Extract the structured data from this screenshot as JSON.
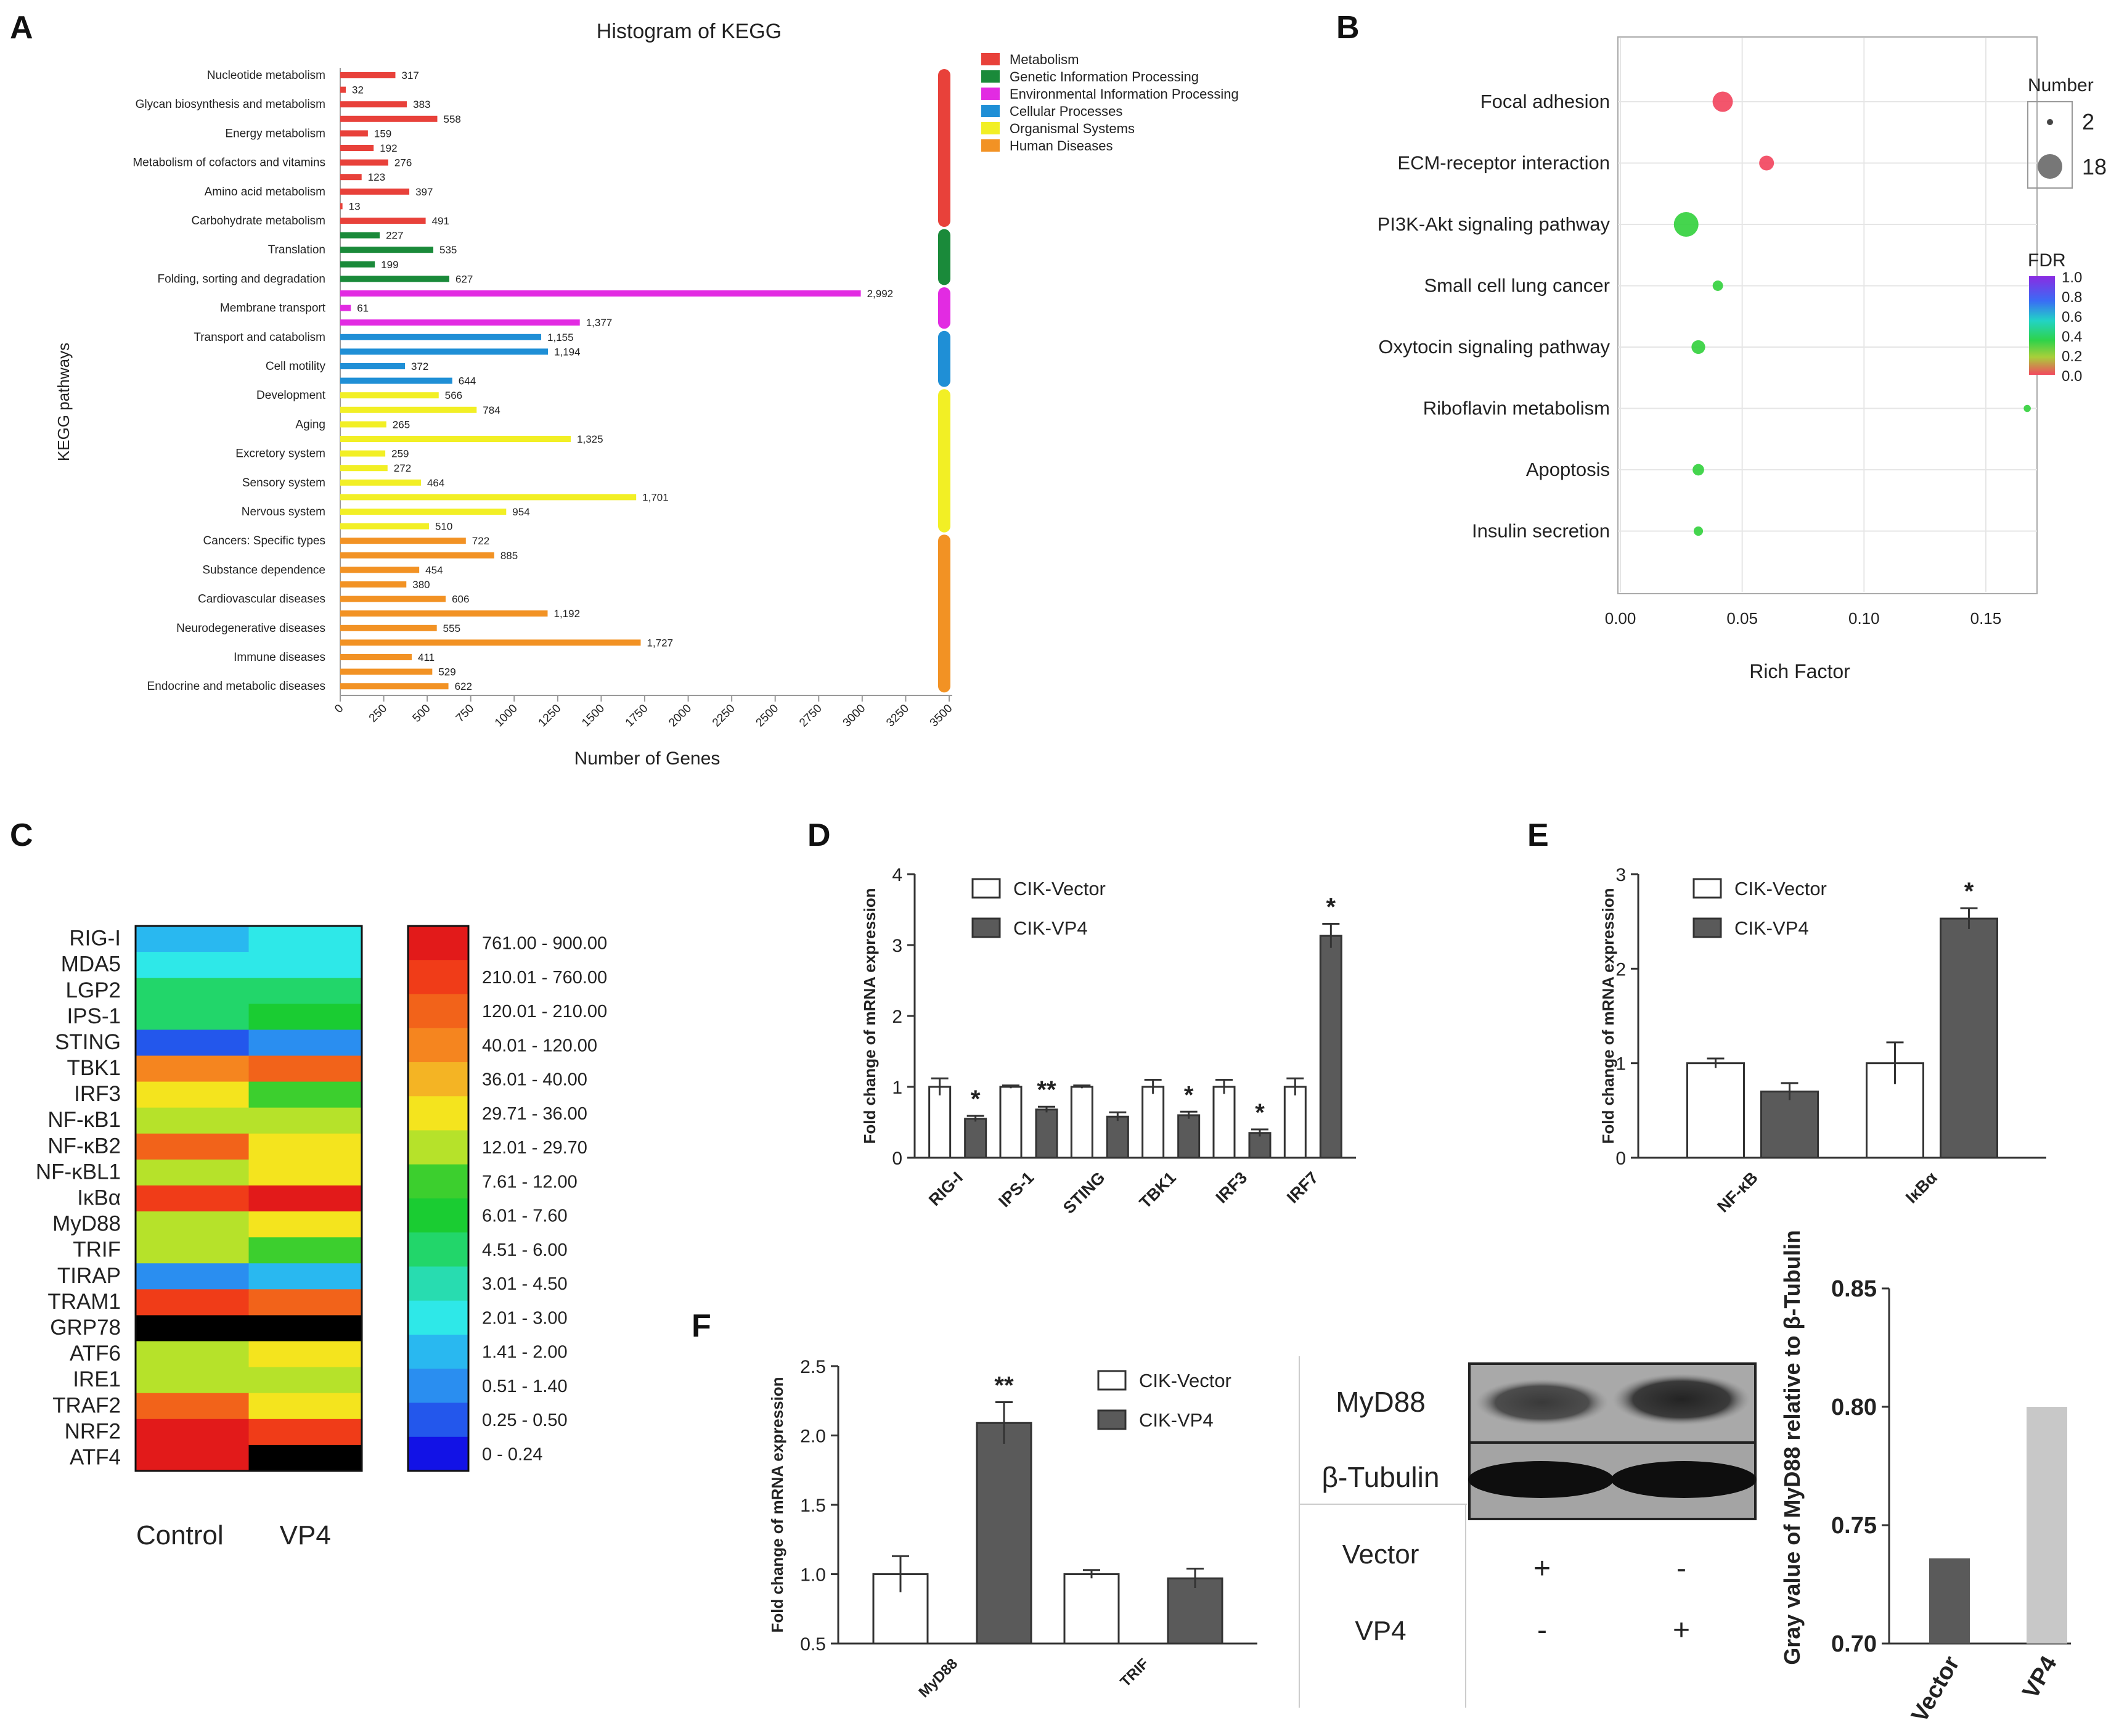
{
  "panels": {
    "A": "A",
    "B": "B",
    "C": "C",
    "D": "D",
    "E": "E",
    "F": "F"
  },
  "colors": {
    "Metabolism": "#e8413a",
    "Genetic Information Processing": "#1a8a3a",
    "Environmental Information Processing": "#e22be2",
    "Cellular Processes": "#1f8fd6",
    "Organismal Systems": "#f2ef25",
    "Human Diseases": "#f29224",
    "dark_bar": "#5a5a5a",
    "light_bar": "#ffffff",
    "grey_bar": "#c8c8c8"
  },
  "chart_data": [
    {
      "id": "kegg",
      "type": "bar",
      "orientation": "horizontal",
      "title": "Histogram of KEGG",
      "xlabel": "Number of Genes",
      "ylabel": "KEGG pathways",
      "xlim": [
        0,
        3500
      ],
      "xticks": [
        "0",
        "250",
        "500",
        "750",
        "1000",
        "1250",
        "1500",
        "1750",
        "2000",
        "2250",
        "2500",
        "2750",
        "3000",
        "3250",
        "3500"
      ],
      "legend": [
        "Metabolism",
        "Genetic Information Processing",
        "Environmental Information Processing",
        "Cellular Processes",
        "Organismal Systems",
        "Human Diseases"
      ],
      "bars": [
        {
          "value": 317,
          "label": "317",
          "cat": "Metabolism",
          "name": "Nucleotide metabolism"
        },
        {
          "value": 32,
          "label": "32",
          "cat": "Metabolism",
          "name": ""
        },
        {
          "value": 383,
          "label": "383",
          "cat": "Metabolism",
          "name": "Glycan biosynthesis and metabolism"
        },
        {
          "value": 558,
          "label": "558",
          "cat": "Metabolism",
          "name": ""
        },
        {
          "value": 159,
          "label": "159",
          "cat": "Metabolism",
          "name": "Energy metabolism"
        },
        {
          "value": 192,
          "label": "192",
          "cat": "Metabolism",
          "name": ""
        },
        {
          "value": 276,
          "label": "276",
          "cat": "Metabolism",
          "name": "Metabolism of cofactors and vitamins"
        },
        {
          "value": 123,
          "label": "123",
          "cat": "Metabolism",
          "name": ""
        },
        {
          "value": 397,
          "label": "397",
          "cat": "Metabolism",
          "name": "Amino acid metabolism"
        },
        {
          "value": 13,
          "label": "13",
          "cat": "Metabolism",
          "name": ""
        },
        {
          "value": 491,
          "label": "491",
          "cat": "Metabolism",
          "name": "Carbohydrate metabolism"
        },
        {
          "value": 227,
          "label": "227",
          "cat": "Genetic Information Processing",
          "name": ""
        },
        {
          "value": 535,
          "label": "535",
          "cat": "Genetic Information Processing",
          "name": "Translation"
        },
        {
          "value": 199,
          "label": "199",
          "cat": "Genetic Information Processing",
          "name": ""
        },
        {
          "value": 627,
          "label": "627",
          "cat": "Genetic Information Processing",
          "name": "Folding, sorting and degradation"
        },
        {
          "value": 2992,
          "label": "2,992",
          "cat": "Environmental Information Processing",
          "name": ""
        },
        {
          "value": 61,
          "label": "61",
          "cat": "Environmental Information Processing",
          "name": "Membrane transport"
        },
        {
          "value": 1377,
          "label": "1,377",
          "cat": "Environmental Information Processing",
          "name": ""
        },
        {
          "value": 1155,
          "label": "1,155",
          "cat": "Cellular Processes",
          "name": "Transport and catabolism"
        },
        {
          "value": 1194,
          "label": "1,194",
          "cat": "Cellular Processes",
          "name": ""
        },
        {
          "value": 372,
          "label": "372",
          "cat": "Cellular Processes",
          "name": "Cell motility"
        },
        {
          "value": 644,
          "label": "644",
          "cat": "Cellular Processes",
          "name": ""
        },
        {
          "value": 566,
          "label": "566",
          "cat": "Organismal Systems",
          "name": "Development"
        },
        {
          "value": 784,
          "label": "784",
          "cat": "Organismal Systems",
          "name": ""
        },
        {
          "value": 265,
          "label": "265",
          "cat": "Organismal Systems",
          "name": "Aging"
        },
        {
          "value": 1325,
          "label": "1,325",
          "cat": "Organismal Systems",
          "name": ""
        },
        {
          "value": 259,
          "label": "259",
          "cat": "Organismal Systems",
          "name": "Excretory system"
        },
        {
          "value": 272,
          "label": "272",
          "cat": "Organismal Systems",
          "name": ""
        },
        {
          "value": 464,
          "label": "464",
          "cat": "Organismal Systems",
          "name": "Sensory system"
        },
        {
          "value": 1701,
          "label": "1,701",
          "cat": "Organismal Systems",
          "name": ""
        },
        {
          "value": 954,
          "label": "954",
          "cat": "Organismal Systems",
          "name": "Nervous system"
        },
        {
          "value": 510,
          "label": "510",
          "cat": "Organismal Systems",
          "name": ""
        },
        {
          "value": 722,
          "label": "722",
          "cat": "Human Diseases",
          "name": "Cancers: Specific types"
        },
        {
          "value": 885,
          "label": "885",
          "cat": "Human Diseases",
          "name": ""
        },
        {
          "value": 454,
          "label": "454",
          "cat": "Human Diseases",
          "name": "Substance dependence"
        },
        {
          "value": 380,
          "label": "380",
          "cat": "Human Diseases",
          "name": ""
        },
        {
          "value": 606,
          "label": "606",
          "cat": "Human Diseases",
          "name": "Cardiovascular diseases"
        },
        {
          "value": 1192,
          "label": "1,192",
          "cat": "Human Diseases",
          "name": ""
        },
        {
          "value": 555,
          "label": "555",
          "cat": "Human Diseases",
          "name": "Neurodegenerative diseases"
        },
        {
          "value": 1727,
          "label": "1,727",
          "cat": "Human Diseases",
          "name": ""
        },
        {
          "value": 411,
          "label": "411",
          "cat": "Human Diseases",
          "name": "Immune diseases"
        },
        {
          "value": 529,
          "label": "529",
          "cat": "Human Diseases",
          "name": ""
        },
        {
          "value": 622,
          "label": "622",
          "cat": "Human Diseases",
          "name": "Endocrine and metabolic diseases"
        }
      ]
    },
    {
      "id": "bubble",
      "type": "scatter",
      "xlabel": "Rich Factor",
      "xlim": [
        0,
        0.17
      ],
      "xticks": [
        "0.00",
        "0.05",
        "0.10",
        "0.15"
      ],
      "size_legend_title": "Number",
      "size_legend": [
        {
          "label": "2",
          "value": 2
        },
        {
          "label": "18",
          "value": 18
        }
      ],
      "color_legend_title": "FDR",
      "color_ticks": [
        "1.0",
        "0.8",
        "0.6",
        "0.4",
        "0.2",
        "0.0"
      ],
      "points": [
        {
          "pathway": "Focal adhesion",
          "rich": 0.042,
          "count": 14,
          "fdr": 0.02
        },
        {
          "pathway": "ECM-receptor interaction",
          "rich": 0.06,
          "count": 9,
          "fdr": 0.04
        },
        {
          "pathway": "PI3K-Akt signaling pathway",
          "rich": 0.027,
          "count": 18,
          "fdr": 0.42
        },
        {
          "pathway": "Small cell lung cancer",
          "rich": 0.04,
          "count": 5,
          "fdr": 0.44
        },
        {
          "pathway": "Oxytocin signaling pathway",
          "rich": 0.032,
          "count": 8,
          "fdr": 0.44
        },
        {
          "pathway": "Riboflavin metabolism",
          "rich": 0.167,
          "count": 2,
          "fdr": 0.44
        },
        {
          "pathway": "Apoptosis",
          "rich": 0.032,
          "count": 6,
          "fdr": 0.44
        },
        {
          "pathway": "Insulin secretion",
          "rich": 0.032,
          "count": 4,
          "fdr": 0.44
        }
      ]
    },
    {
      "id": "heatmap",
      "type": "heatmap",
      "columns": [
        "Control",
        "VP4"
      ],
      "rows": [
        "RIG-I",
        "MDA5",
        "LGP2",
        "IPS-1",
        "STING",
        "TBK1",
        "IRF3",
        "NF-κB1",
        "NF-κB2",
        "NF-κBL1",
        "IκBα",
        "MyD88",
        "TRIF",
        "TIRAP",
        "TRAM1",
        "GRP78",
        "ATF6",
        "IRE1",
        "TRAF2",
        "NRF2",
        "ATF4"
      ],
      "cell_bins": [
        [
          3,
          4
        ],
        [
          4,
          4
        ],
        [
          6,
          6
        ],
        [
          6,
          7
        ],
        [
          1,
          2
        ],
        [
          12,
          13
        ],
        [
          10,
          8
        ],
        [
          9,
          9
        ],
        [
          13,
          10
        ],
        [
          9,
          10
        ],
        [
          14,
          15
        ],
        [
          9,
          10
        ],
        [
          9,
          8
        ],
        [
          2,
          3
        ],
        [
          14,
          13
        ],
        [
          16,
          17
        ],
        [
          9,
          10
        ],
        [
          9,
          9
        ],
        [
          13,
          10
        ],
        [
          15,
          14
        ],
        [
          15,
          16
        ]
      ],
      "scale_labels": [
        "761.00 - 900.00",
        "210.01 - 760.00",
        "120.01 - 210.00",
        "40.01 - 120.00",
        "36.01 - 40.00",
        "29.71 - 36.00",
        "12.01 - 29.70",
        "7.61 - 12.00",
        "6.01 - 7.60",
        "4.51 - 6.00",
        "3.01 - 4.50",
        "2.01 - 3.00",
        "1.41 - 2.00",
        "0.51 - 1.40",
        "0.25 - 0.50",
        "0 - 0.24"
      ],
      "scale_colors": [
        "#e21a1a",
        "#f03c18",
        "#f2631a",
        "#f5851f",
        "#f4b424",
        "#f4e41e",
        "#b6e22a",
        "#3ccf2e",
        "#1acc32",
        "#22d66a",
        "#28dcb0",
        "#2ee8e8",
        "#29b8f0",
        "#2a8ef0",
        "#2357ec",
        "#1212e6"
      ]
    },
    {
      "id": "D",
      "type": "bar",
      "ylabel": "Fold change of mRNA expression",
      "ylim": [
        0,
        4
      ],
      "yticks": [
        "0",
        "1",
        "2",
        "3",
        "4"
      ],
      "categories": [
        "RIG-I",
        "IPS-1",
        "STING",
        "TBK1",
        "IRF3",
        "IRF7"
      ],
      "series": [
        {
          "name": "CIK-Vector",
          "values": [
            1.0,
            1.0,
            1.0,
            1.0,
            1.0,
            1.0
          ],
          "errors": [
            0.12,
            0.02,
            0.02,
            0.1,
            0.1,
            0.12
          ]
        },
        {
          "name": "CIK-VP4",
          "values": [
            0.55,
            0.68,
            0.58,
            0.6,
            0.35,
            3.13
          ],
          "errors": [
            0.04,
            0.04,
            0.06,
            0.05,
            0.05,
            0.17
          ]
        }
      ],
      "significance": [
        "*",
        "**",
        "",
        "*",
        "*",
        "*"
      ]
    },
    {
      "id": "E",
      "type": "bar",
      "ylabel": "Fold change of mRNA expression",
      "ylim": [
        0,
        3
      ],
      "yticks": [
        "0",
        "1",
        "2",
        "3"
      ],
      "categories": [
        "NF-κB",
        "IκBα"
      ],
      "series": [
        {
          "name": "CIK-Vector",
          "values": [
            1.0,
            1.0
          ],
          "errors": [
            0.05,
            0.22
          ]
        },
        {
          "name": "CIK-VP4",
          "values": [
            0.7,
            2.53
          ],
          "errors": [
            0.09,
            0.11
          ]
        }
      ],
      "significance": [
        "",
        "*"
      ]
    },
    {
      "id": "F",
      "type": "bar",
      "ylabel": "Fold change of mRNA expression",
      "ylim": [
        0.5,
        2.5
      ],
      "yticks": [
        "0.5",
        "1.0",
        "1.5",
        "2.0",
        "2.5"
      ],
      "categories": [
        "MyD88",
        "TRIF"
      ],
      "series": [
        {
          "name": "CIK-Vector",
          "values": [
            1.0,
            1.0
          ],
          "errors": [
            0.13,
            0.03
          ]
        },
        {
          "name": "CIK-VP4",
          "values": [
            2.09,
            0.97
          ],
          "errors": [
            0.15,
            0.07
          ]
        }
      ],
      "significance": [
        "**",
        ""
      ]
    },
    {
      "id": "F-gray",
      "type": "bar",
      "ylabel": "Gray value of MyD88 relative to β-Tubulin",
      "ylim": [
        0.7,
        0.85
      ],
      "yticks": [
        "0.70",
        "0.75",
        "0.80",
        "0.85"
      ],
      "categories": [
        "Vector",
        "VP4"
      ],
      "values": [
        0.736,
        0.8
      ]
    }
  ],
  "blot": {
    "rows": [
      "MyD88",
      "β-Tubulin"
    ],
    "conditions": [
      {
        "label": "Vector",
        "marks": [
          "+",
          "-"
        ]
      },
      {
        "label": "VP4",
        "marks": [
          "-",
          "+"
        ]
      }
    ]
  }
}
